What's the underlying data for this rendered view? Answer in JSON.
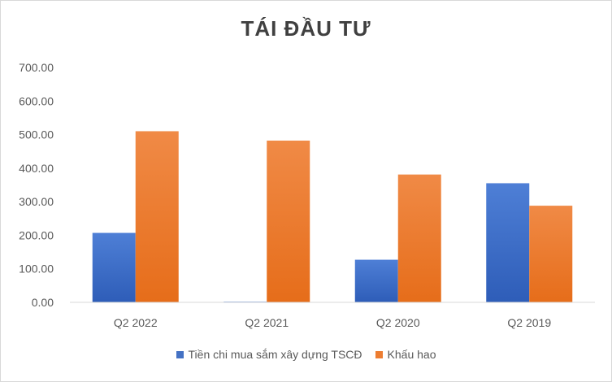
{
  "chart_data": {
    "type": "bar",
    "title": "TÁI ĐẦU TƯ",
    "categories": [
      "Q2 2022",
      "Q2 2021",
      "Q2 2020",
      "Q2 2019"
    ],
    "series": [
      {
        "name": "Tiền chi mua sắm xây dựng TSCĐ",
        "values": [
          207,
          2,
          127,
          355
        ],
        "color": "#4472c4"
      },
      {
        "name": "Khấu hao",
        "values": [
          510,
          482,
          381,
          288
        ],
        "color": "#ed7d31"
      }
    ],
    "y_ticks": [
      "0.00",
      "100.00",
      "200.00",
      "300.00",
      "400.00",
      "500.00",
      "600.00",
      "700.00"
    ],
    "ylim": [
      0,
      700
    ],
    "grid": false,
    "legend_position": "bottom"
  }
}
